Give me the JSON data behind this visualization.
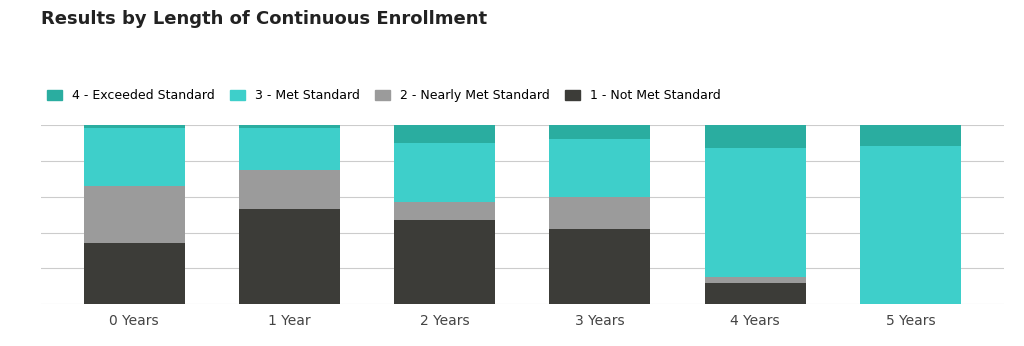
{
  "title": "Results by Length of Continuous Enrollment",
  "categories": [
    "0 Years",
    "1 Year",
    "2 Years",
    "3 Years",
    "4 Years",
    "5 Years"
  ],
  "series": {
    "4 - Exceeded Standard": [
      2,
      2,
      10,
      8,
      13,
      12
    ],
    "3 - Met Standard": [
      32,
      23,
      33,
      32,
      72,
      88
    ],
    "2 - Nearly Met Standard": [
      32,
      22,
      10,
      18,
      3,
      0
    ],
    "1 - Not Met Standard": [
      34,
      53,
      47,
      42,
      12,
      0
    ]
  },
  "colors": {
    "4 - Exceeded Standard": "#2aada0",
    "3 - Met Standard": "#3ecfca",
    "2 - Nearly Met Standard": "#9b9b9b",
    "1 - Not Met Standard": "#3c3c38"
  },
  "legend_order": [
    "4 - Exceeded Standard",
    "3 - Met Standard",
    "2 - Nearly Met Standard",
    "1 - Not Met Standard"
  ],
  "bar_width": 0.65,
  "background_color": "#ffffff",
  "title_fontsize": 13,
  "legend_fontsize": 9,
  "tick_fontsize": 10,
  "grid_color": "#cccccc",
  "ylim": [
    0,
    100
  ]
}
